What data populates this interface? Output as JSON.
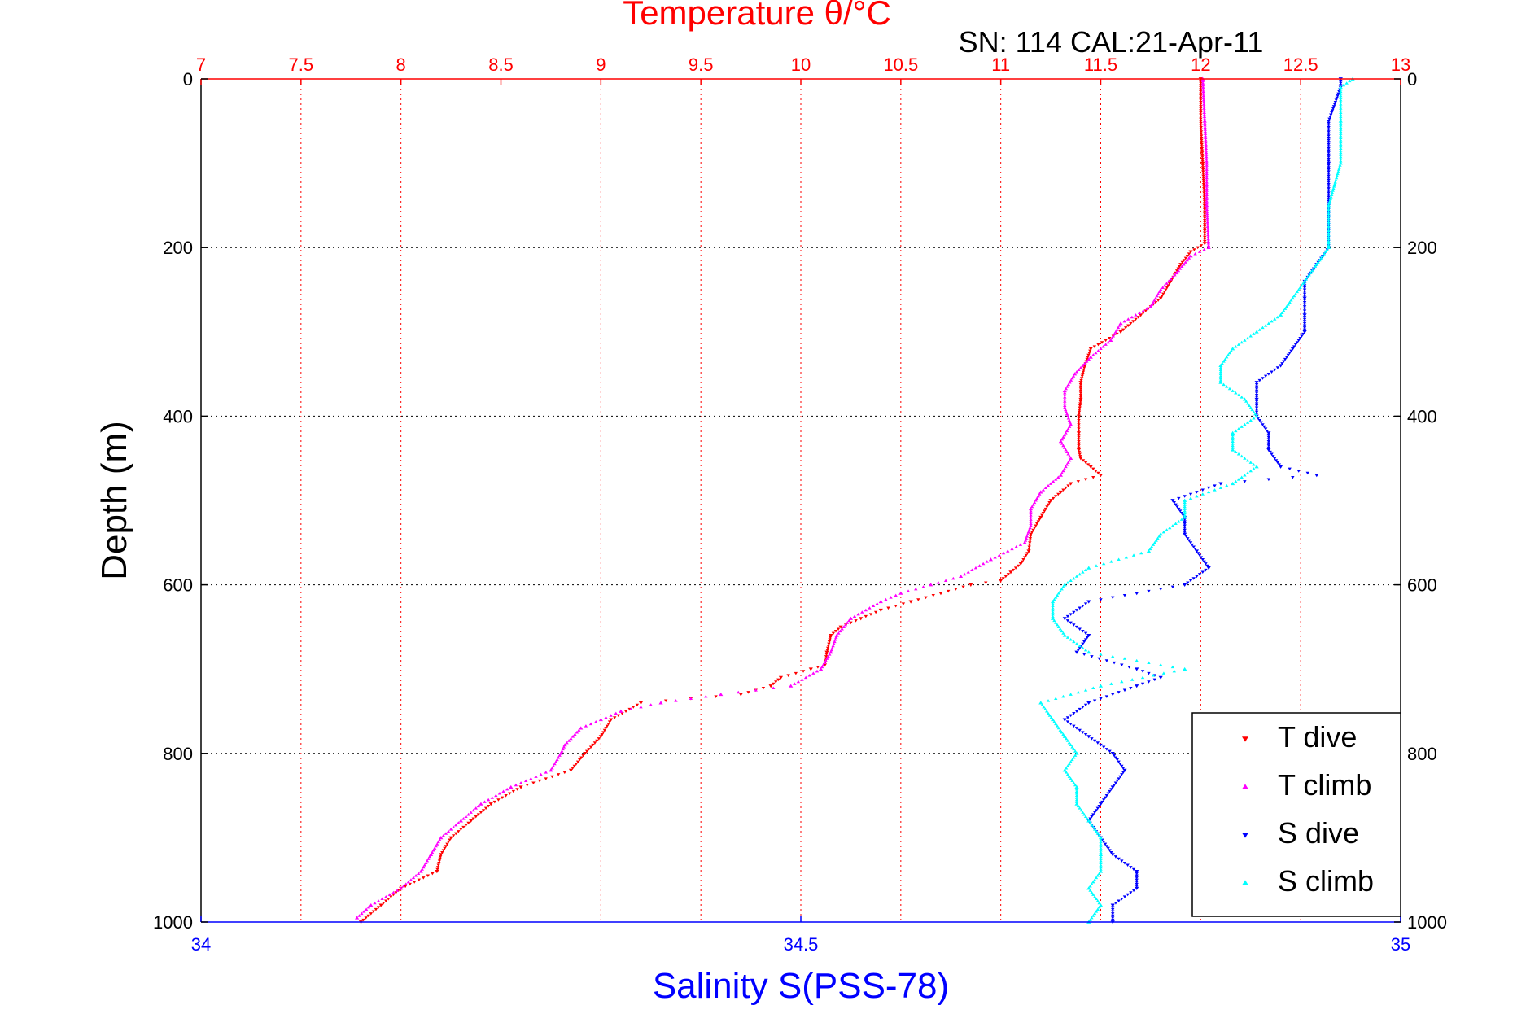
{
  "chart_data": {
    "type": "scatter",
    "title": "Temperature θ/°C",
    "annotation": "SN: 114  CAL:21-Apr-11",
    "xlabel_bottom": "Salinity S(PSS-78)",
    "ylabel": "Depth (m)",
    "temperature_axis": {
      "range": [
        7,
        13
      ],
      "ticks": [
        "7",
        "7.5",
        "8",
        "8.5",
        "9",
        "9.5",
        "10",
        "10.5",
        "11",
        "11.5",
        "12",
        "12.5",
        "13"
      ],
      "color": "#ff0000"
    },
    "salinity_axis": {
      "range": [
        34,
        35
      ],
      "ticks": [
        "34",
        "34.5",
        "35"
      ],
      "color": "#0000ff"
    },
    "depth_axis": {
      "range": [
        0,
        1000
      ],
      "reversed": true,
      "ticks": [
        "0",
        "200",
        "400",
        "600",
        "800",
        "1000"
      ]
    },
    "grid": true,
    "legend_position": "bottom-right",
    "series": [
      {
        "name": "T dive",
        "axis": "temperature",
        "color": "#ff0000",
        "marker": "triangle-down",
        "depth": [
          0,
          50,
          100,
          150,
          195,
          205,
          220,
          240,
          260,
          280,
          300,
          320,
          340,
          360,
          380,
          400,
          420,
          440,
          450,
          460,
          470,
          480,
          490,
          500,
          520,
          540,
          560,
          575,
          585,
          595,
          600,
          610,
          620,
          630,
          640,
          650,
          660,
          680,
          695,
          700,
          710,
          720,
          730,
          740,
          760,
          780,
          800,
          820,
          840,
          860,
          880,
          900,
          920,
          940,
          960,
          980,
          1000
        ],
        "values": [
          12.0,
          12.0,
          12.01,
          12.02,
          12.02,
          11.95,
          11.9,
          11.85,
          11.8,
          11.7,
          11.6,
          11.45,
          11.42,
          11.4,
          11.4,
          11.39,
          11.39,
          11.39,
          11.4,
          11.45,
          11.5,
          11.35,
          11.3,
          11.25,
          11.2,
          11.15,
          11.14,
          11.1,
          11.05,
          11.0,
          10.85,
          10.7,
          10.55,
          10.4,
          10.3,
          10.2,
          10.15,
          10.13,
          10.12,
          10.05,
          9.9,
          9.85,
          9.7,
          9.2,
          9.05,
          9.0,
          8.92,
          8.85,
          8.6,
          8.45,
          8.35,
          8.25,
          8.2,
          8.18,
          8.0,
          7.9,
          7.8
        ]
      },
      {
        "name": "T climb",
        "axis": "temperature",
        "color": "#ff00ff",
        "marker": "triangle-up",
        "depth": [
          0,
          50,
          100,
          150,
          200,
          210,
          230,
          250,
          270,
          290,
          310,
          330,
          350,
          370,
          390,
          410,
          430,
          450,
          470,
          490,
          510,
          530,
          550,
          570,
          590,
          600,
          610,
          620,
          640,
          660,
          680,
          700,
          720,
          730,
          740,
          750,
          760,
          770,
          790,
          800,
          820,
          840,
          860,
          880,
          900,
          920,
          940,
          960,
          980,
          995
        ],
        "values": [
          12.01,
          12.02,
          12.03,
          12.03,
          12.04,
          11.95,
          11.88,
          11.8,
          11.75,
          11.6,
          11.55,
          11.45,
          11.37,
          11.32,
          11.32,
          11.35,
          11.3,
          11.35,
          11.3,
          11.2,
          11.15,
          11.15,
          11.12,
          10.95,
          10.8,
          10.65,
          10.5,
          10.4,
          10.25,
          10.18,
          10.15,
          10.1,
          9.95,
          9.6,
          9.3,
          9.1,
          9.0,
          8.9,
          8.82,
          8.8,
          8.75,
          8.55,
          8.4,
          8.3,
          8.2,
          8.15,
          8.1,
          8.0,
          7.85,
          7.78
        ]
      },
      {
        "name": "S dive",
        "axis": "salinity",
        "color": "#0000ff",
        "marker": "triangle-down",
        "depth": [
          0,
          10,
          50,
          100,
          150,
          200,
          220,
          240,
          260,
          280,
          300,
          320,
          340,
          360,
          380,
          400,
          420,
          440,
          460,
          470,
          480,
          500,
          520,
          540,
          560,
          580,
          600,
          610,
          620,
          640,
          660,
          680,
          700,
          710,
          720,
          740,
          760,
          780,
          800,
          820,
          840,
          860,
          880,
          900,
          920,
          940,
          960,
          980,
          1000
        ],
        "values": [
          34.95,
          34.95,
          34.94,
          34.94,
          34.94,
          34.94,
          34.93,
          34.92,
          34.92,
          34.92,
          34.92,
          34.91,
          34.9,
          34.88,
          34.88,
          34.88,
          34.89,
          34.89,
          34.9,
          34.93,
          34.85,
          34.81,
          34.82,
          34.82,
          34.83,
          34.84,
          34.82,
          34.78,
          34.74,
          34.72,
          34.74,
          34.73,
          34.78,
          34.8,
          34.78,
          34.74,
          34.72,
          34.74,
          34.76,
          34.77,
          34.76,
          34.75,
          34.74,
          34.75,
          34.76,
          34.78,
          34.78,
          34.76,
          34.76
        ]
      },
      {
        "name": "S climb",
        "axis": "salinity",
        "color": "#00ffff",
        "marker": "triangle-up",
        "depth": [
          0,
          10,
          50,
          100,
          150,
          200,
          220,
          240,
          260,
          280,
          300,
          320,
          340,
          360,
          380,
          400,
          420,
          440,
          460,
          480,
          500,
          520,
          540,
          560,
          580,
          600,
          620,
          640,
          660,
          680,
          700,
          720,
          740,
          760,
          780,
          800,
          820,
          840,
          860,
          880,
          900,
          920,
          940,
          960,
          980,
          1000
        ],
        "values": [
          34.96,
          34.95,
          34.95,
          34.95,
          34.94,
          34.94,
          34.93,
          34.92,
          34.91,
          34.9,
          34.88,
          34.86,
          34.85,
          34.85,
          34.87,
          34.88,
          34.86,
          34.86,
          34.88,
          34.86,
          34.82,
          34.82,
          34.8,
          34.79,
          34.74,
          34.72,
          34.71,
          34.71,
          34.72,
          34.74,
          34.82,
          34.75,
          34.7,
          34.71,
          34.72,
          34.73,
          34.72,
          34.73,
          34.73,
          34.74,
          34.75,
          34.75,
          34.75,
          34.74,
          34.75,
          34.74
        ]
      }
    ]
  }
}
